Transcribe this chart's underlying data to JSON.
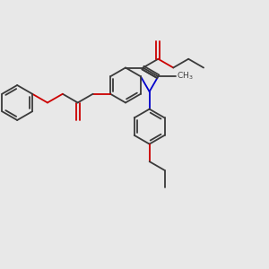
{
  "background_color": "#e8e8e8",
  "bond_color": "#3a3a3a",
  "o_color": "#cc0000",
  "n_color": "#0000cc",
  "lw": 1.3,
  "xlim": [
    0.0,
    3.0
  ],
  "ylim": [
    0.0,
    3.0
  ]
}
